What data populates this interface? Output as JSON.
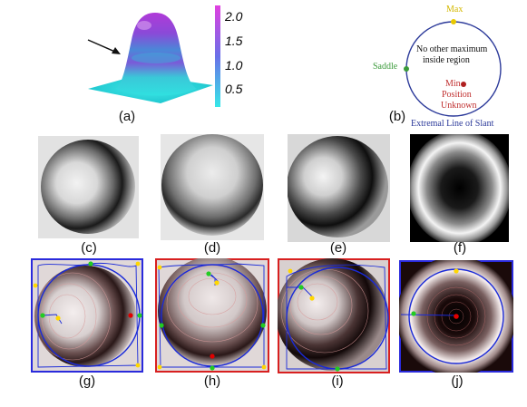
{
  "captions": [
    "(a)",
    "(b)",
    "(c)",
    "(d)",
    "(e)",
    "(f)",
    "(g)",
    "(h)",
    "(i)",
    "(j)"
  ],
  "panel_a": {
    "colorbar_ticks": [
      "2.0",
      "1.5",
      "1.0",
      "0.5"
    ],
    "colors": {
      "low": "#36e0e0",
      "mid": "#5a78e0",
      "high": "#d040d8"
    }
  },
  "panel_b": {
    "max_label": "Max",
    "saddle_label": "Saddle",
    "text_line1": "No other maximum",
    "text_line2": "inside region",
    "min_line1": "Min",
    "min_line2": "Position",
    "min_line3": "Unknown",
    "curve_label": "Extremal Line of Slant",
    "colors": {
      "max": "#e8c800",
      "saddle": "#3a9a3a",
      "min": "#b02020",
      "curve": "#2c3a9a",
      "min_text": "#c03030",
      "saddle_text": "#3a9a3a"
    }
  },
  "marker_colors": {
    "max": "#ffd700",
    "saddle": "#22cc22",
    "min": "#e00000",
    "line": "#1a2ad8"
  }
}
